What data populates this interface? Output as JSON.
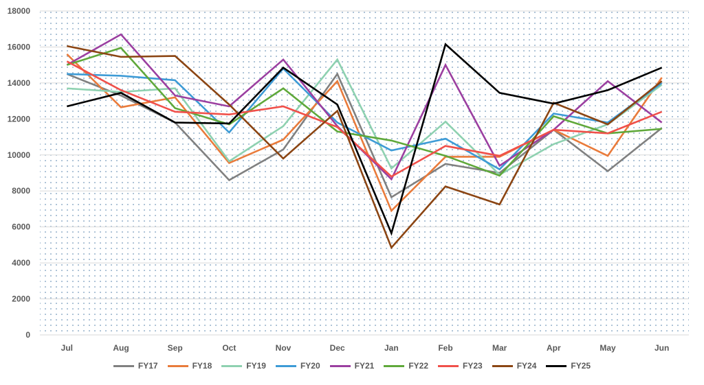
{
  "chart_data": {
    "type": "line",
    "title": "",
    "xlabel": "",
    "ylabel": "",
    "ylim": [
      0,
      18000
    ],
    "yticks": [
      0,
      2000,
      4000,
      6000,
      8000,
      10000,
      12000,
      14000,
      16000,
      18000
    ],
    "grid": true,
    "legend_position": "bottom",
    "categories": [
      "Jul",
      "Aug",
      "Sep",
      "Oct",
      "Nov",
      "Dec",
      "Jan",
      "Feb",
      "Mar",
      "Apr",
      "May",
      "Jun"
    ],
    "series": [
      {
        "name": "FY17",
        "color": "#808080",
        "values": [
          14500,
          13300,
          11800,
          8600,
          10300,
          14500,
          7650,
          9500,
          9000,
          11400,
          9100,
          11500
        ]
      },
      {
        "name": "FY18",
        "color": "#E97B3B",
        "values": [
          15600,
          12650,
          13200,
          9550,
          10850,
          14100,
          6900,
          9900,
          9900,
          11400,
          9950,
          14300
        ]
      },
      {
        "name": "FY19",
        "color": "#8ED1B0",
        "values": [
          13700,
          13500,
          13700,
          9650,
          11600,
          15300,
          9250,
          11850,
          8900,
          10600,
          11700,
          13900
        ]
      },
      {
        "name": "FY20",
        "color": "#3D9BD6",
        "values": [
          14500,
          14400,
          14150,
          11250,
          14800,
          11800,
          10250,
          10900,
          9200,
          12300,
          11800,
          14000
        ]
      },
      {
        "name": "FY21",
        "color": "#9B3FA0",
        "values": [
          15000,
          16700,
          13300,
          12700,
          15300,
          11600,
          8650,
          15000,
          9400,
          11400,
          14100,
          11800
        ]
      },
      {
        "name": "FY22",
        "color": "#5FA83A",
        "values": [
          15000,
          15950,
          12600,
          11700,
          13700,
          11300,
          10800,
          9950,
          8850,
          12150,
          11200,
          11450
        ]
      },
      {
        "name": "FY23",
        "color": "#F0504A",
        "values": [
          15200,
          13600,
          12400,
          12250,
          12700,
          11550,
          8800,
          10500,
          9950,
          11400,
          11200,
          12400
        ]
      },
      {
        "name": "FY24",
        "color": "#8B4513",
        "values": [
          16050,
          15450,
          15500,
          12800,
          9800,
          12450,
          4850,
          8250,
          7250,
          12900,
          11700,
          14100
        ]
      },
      {
        "name": "FY25",
        "color": "#000000",
        "values": [
          12700,
          13450,
          11800,
          11750,
          14850,
          12800,
          5650,
          16150,
          13450,
          12850,
          13600,
          14850
        ]
      }
    ]
  }
}
